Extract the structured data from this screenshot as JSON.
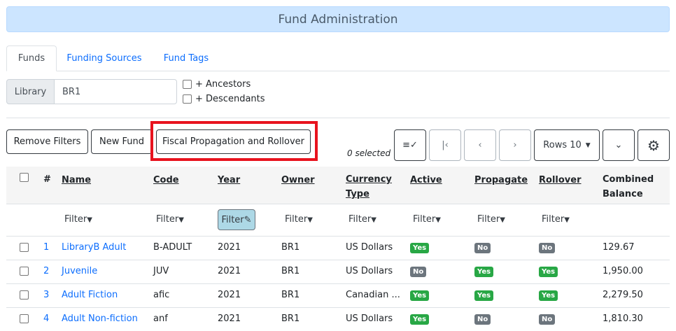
{
  "header": {
    "title": "Fund Administration"
  },
  "tabs": [
    {
      "label": "Funds",
      "active": true
    },
    {
      "label": "Funding Sources"
    },
    {
      "label": "Fund Tags"
    }
  ],
  "library": {
    "label": "Library",
    "value": "BR1",
    "ancestors_label": "+ Ancestors",
    "descendants_label": "+ Descendants"
  },
  "toolbar": {
    "remove_filters": "Remove Filters",
    "new_fund": "New Fund",
    "fiscal": "Fiscal Propagation and Rollover",
    "selected": "0 selected",
    "rows": "Rows 10"
  },
  "table": {
    "columns": [
      "#",
      "Name",
      "Code",
      "Year",
      "Owner",
      "Currency Type",
      "Active",
      "Propagate",
      "Rollover",
      "Combined Balance"
    ],
    "filter_label": "Filter",
    "rows": [
      {
        "n": "1",
        "name": "LibraryB Adult",
        "code": "B-ADULT",
        "year": "2021",
        "owner": "BR1",
        "currency": "US Dollars",
        "active": "Yes",
        "propagate": "No",
        "rollover": "No",
        "balance": "129.67"
      },
      {
        "n": "2",
        "name": "Juvenile",
        "code": "JUV",
        "year": "2021",
        "owner": "BR1",
        "currency": "US Dollars",
        "active": "No",
        "propagate": "Yes",
        "rollover": "Yes",
        "balance": "1,950.00"
      },
      {
        "n": "3",
        "name": "Adult Fiction",
        "code": "afic",
        "year": "2021",
        "owner": "BR1",
        "currency": "Canadian ...",
        "active": "Yes",
        "propagate": "Yes",
        "rollover": "Yes",
        "balance": "2,279.50"
      },
      {
        "n": "4",
        "name": "Adult Non-fiction",
        "code": "anf",
        "year": "2021",
        "owner": "BR1",
        "currency": "US Dollars",
        "active": "Yes",
        "propagate": "No",
        "rollover": "No",
        "balance": "1,810.30"
      }
    ]
  },
  "colors": {
    "yes": "#28a745",
    "no": "#6c757d",
    "highlight": "#e8131e",
    "banner": "#cce5ff",
    "link": "#0d6efd"
  }
}
